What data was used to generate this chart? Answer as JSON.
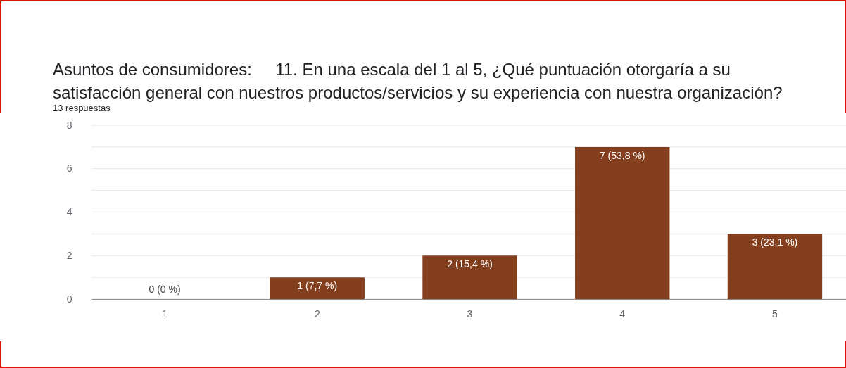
{
  "chart_data": {
    "type": "bar",
    "title": "Asuntos de consumidores:     11. En una escala del 1 al 5, ¿Qué puntuación otorgaría a su satisfacción general con nuestros productos/servicios y su experiencia con nuestra organización?",
    "subtitle": "13 respuestas",
    "categories": [
      "1",
      "2",
      "3",
      "4",
      "5"
    ],
    "values": [
      0,
      1,
      2,
      7,
      3
    ],
    "value_labels": [
      "0 (0 %)",
      "1 (7,7 %)",
      "2 (15,4 %)",
      "7 (53,8 %)",
      "3 (23,1 %)"
    ],
    "color": "#843f1f",
    "ylim": [
      0,
      8
    ],
    "yticks": [
      0,
      {
        "value": 1,
        "label": null
      },
      2,
      {
        "value": 3,
        "label": null
      },
      4,
      {
        "value": 5,
        "label": null
      },
      6,
      {
        "value": 7,
        "label": null
      },
      8
    ],
    "grid": "y"
  }
}
